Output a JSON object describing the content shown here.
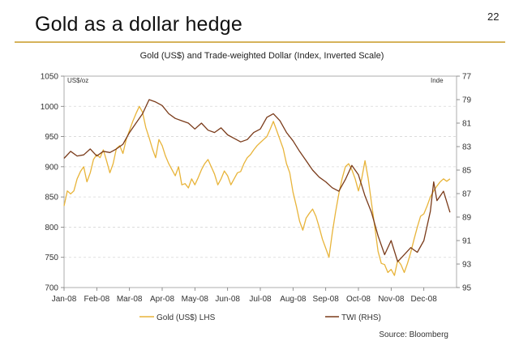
{
  "slide": {
    "title": "Gold as a dollar hedge",
    "page_number": "22"
  },
  "colors": {
    "accent_rule": "#d6b25a",
    "gold_series": "#e8b43a",
    "twi_series": "#7a3b1a",
    "gridline": "#d8d8d8"
  },
  "chart_data": {
    "type": "line",
    "title": "Gold (US$) and Trade-weighted Dollar (Index, Inverted Scale)",
    "left_axis": {
      "unit_label": "US$/oz",
      "ylim": [
        700,
        1050
      ],
      "ticks": [
        700,
        750,
        800,
        850,
        900,
        950,
        1000,
        1050
      ]
    },
    "right_axis": {
      "unit_label": "Inde",
      "ylim": [
        77,
        95
      ],
      "inverted": true,
      "ticks": [
        77,
        79,
        81,
        83,
        85,
        87,
        89,
        91,
        93,
        95
      ]
    },
    "x_ticks": [
      "Jan-08",
      "Feb-08",
      "Mar-08",
      "Apr-08",
      "May-08",
      "Jun-08",
      "Jul-08",
      "Aug-08",
      "Sep-08",
      "Oct-08",
      "Nov-08",
      "Dec-08"
    ],
    "grid": true,
    "legend_position": "bottom",
    "source": "Source: Bloomberg",
    "series": [
      {
        "name": "Gold (US$) LHS",
        "axis": "left",
        "color": "#e8b43a",
        "points": [
          [
            0.0,
            835
          ],
          [
            0.1,
            860
          ],
          [
            0.2,
            855
          ],
          [
            0.3,
            860
          ],
          [
            0.4,
            880
          ],
          [
            0.5,
            892
          ],
          [
            0.6,
            900
          ],
          [
            0.7,
            875
          ],
          [
            0.8,
            890
          ],
          [
            0.9,
            912
          ],
          [
            1.0,
            920
          ],
          [
            1.1,
            915
          ],
          [
            1.2,
            928
          ],
          [
            1.3,
            910
          ],
          [
            1.4,
            890
          ],
          [
            1.5,
            905
          ],
          [
            1.6,
            930
          ],
          [
            1.7,
            935
          ],
          [
            1.8,
            922
          ],
          [
            1.9,
            945
          ],
          [
            2.0,
            960
          ],
          [
            2.1,
            975
          ],
          [
            2.2,
            988
          ],
          [
            2.3,
            1000
          ],
          [
            2.4,
            990
          ],
          [
            2.5,
            965
          ],
          [
            2.6,
            948
          ],
          [
            2.7,
            930
          ],
          [
            2.8,
            915
          ],
          [
            2.9,
            945
          ],
          [
            3.0,
            935
          ],
          [
            3.1,
            918
          ],
          [
            3.2,
            905
          ],
          [
            3.3,
            895
          ],
          [
            3.4,
            885
          ],
          [
            3.5,
            900
          ],
          [
            3.6,
            870
          ],
          [
            3.7,
            872
          ],
          [
            3.8,
            865
          ],
          [
            3.9,
            880
          ],
          [
            4.0,
            870
          ],
          [
            4.1,
            882
          ],
          [
            4.2,
            895
          ],
          [
            4.3,
            905
          ],
          [
            4.4,
            912
          ],
          [
            4.5,
            900
          ],
          [
            4.6,
            888
          ],
          [
            4.7,
            870
          ],
          [
            4.8,
            880
          ],
          [
            4.9,
            893
          ],
          [
            5.0,
            885
          ],
          [
            5.1,
            870
          ],
          [
            5.2,
            880
          ],
          [
            5.3,
            890
          ],
          [
            5.4,
            892
          ],
          [
            5.5,
            905
          ],
          [
            5.6,
            915
          ],
          [
            5.7,
            920
          ],
          [
            5.8,
            928
          ],
          [
            5.9,
            935
          ],
          [
            6.0,
            940
          ],
          [
            6.1,
            945
          ],
          [
            6.2,
            950
          ],
          [
            6.3,
            962
          ],
          [
            6.4,
            975
          ],
          [
            6.5,
            960
          ],
          [
            6.6,
            945
          ],
          [
            6.7,
            930
          ],
          [
            6.8,
            905
          ],
          [
            6.9,
            890
          ],
          [
            7.0,
            858
          ],
          [
            7.1,
            835
          ],
          [
            7.2,
            810
          ],
          [
            7.3,
            795
          ],
          [
            7.4,
            815
          ],
          [
            7.5,
            823
          ],
          [
            7.6,
            830
          ],
          [
            7.7,
            818
          ],
          [
            7.8,
            800
          ],
          [
            7.9,
            780
          ],
          [
            8.0,
            765
          ],
          [
            8.1,
            750
          ],
          [
            8.2,
            790
          ],
          [
            8.3,
            825
          ],
          [
            8.4,
            855
          ],
          [
            8.5,
            880
          ],
          [
            8.6,
            900
          ],
          [
            8.7,
            905
          ],
          [
            8.8,
            895
          ],
          [
            8.9,
            880
          ],
          [
            9.0,
            860
          ],
          [
            9.1,
            880
          ],
          [
            9.2,
            910
          ],
          [
            9.3,
            880
          ],
          [
            9.4,
            840
          ],
          [
            9.5,
            800
          ],
          [
            9.6,
            760
          ],
          [
            9.7,
            740
          ],
          [
            9.8,
            738
          ],
          [
            9.9,
            725
          ],
          [
            10.0,
            730
          ],
          [
            10.1,
            720
          ],
          [
            10.2,
            745
          ],
          [
            10.3,
            738
          ],
          [
            10.4,
            725
          ],
          [
            10.5,
            740
          ],
          [
            10.6,
            758
          ],
          [
            10.7,
            780
          ],
          [
            10.8,
            800
          ],
          [
            10.9,
            818
          ],
          [
            11.0,
            822
          ],
          [
            11.1,
            835
          ],
          [
            11.2,
            850
          ],
          [
            11.3,
            860
          ],
          [
            11.4,
            868
          ],
          [
            11.5,
            875
          ],
          [
            11.6,
            880
          ],
          [
            11.7,
            876
          ],
          [
            11.8,
            880
          ]
        ]
      },
      {
        "name": "TWI  (RHS)",
        "axis": "right",
        "color": "#7a3b1a",
        "points": [
          [
            0.0,
            84.0
          ],
          [
            0.2,
            83.4
          ],
          [
            0.4,
            83.8
          ],
          [
            0.6,
            83.7
          ],
          [
            0.8,
            83.2
          ],
          [
            1.0,
            83.8
          ],
          [
            1.2,
            83.4
          ],
          [
            1.4,
            83.5
          ],
          [
            1.6,
            83.2
          ],
          [
            1.8,
            82.8
          ],
          [
            2.0,
            81.8
          ],
          [
            2.2,
            81.0
          ],
          [
            2.4,
            80.2
          ],
          [
            2.6,
            79.0
          ],
          [
            2.8,
            79.2
          ],
          [
            3.0,
            79.5
          ],
          [
            3.2,
            80.2
          ],
          [
            3.4,
            80.6
          ],
          [
            3.6,
            80.8
          ],
          [
            3.8,
            81.0
          ],
          [
            4.0,
            81.5
          ],
          [
            4.2,
            81.0
          ],
          [
            4.4,
            81.6
          ],
          [
            4.6,
            81.8
          ],
          [
            4.8,
            81.4
          ],
          [
            5.0,
            82.0
          ],
          [
            5.2,
            82.3
          ],
          [
            5.4,
            82.6
          ],
          [
            5.6,
            82.4
          ],
          [
            5.8,
            81.8
          ],
          [
            6.0,
            81.5
          ],
          [
            6.2,
            80.5
          ],
          [
            6.4,
            80.2
          ],
          [
            6.6,
            80.8
          ],
          [
            6.8,
            81.8
          ],
          [
            7.0,
            82.5
          ],
          [
            7.2,
            83.4
          ],
          [
            7.4,
            84.2
          ],
          [
            7.6,
            85.0
          ],
          [
            7.8,
            85.6
          ],
          [
            8.0,
            86.0
          ],
          [
            8.2,
            86.5
          ],
          [
            8.4,
            86.8
          ],
          [
            8.6,
            85.8
          ],
          [
            8.8,
            84.6
          ],
          [
            9.0,
            85.4
          ],
          [
            9.2,
            87.2
          ],
          [
            9.4,
            88.6
          ],
          [
            9.6,
            90.6
          ],
          [
            9.8,
            92.2
          ],
          [
            10.0,
            91.0
          ],
          [
            10.2,
            92.8
          ],
          [
            10.4,
            92.2
          ],
          [
            10.6,
            91.6
          ],
          [
            10.8,
            92.0
          ],
          [
            11.0,
            91.0
          ],
          [
            11.2,
            88.5
          ],
          [
            11.3,
            86.0
          ],
          [
            11.4,
            87.6
          ],
          [
            11.6,
            86.8
          ],
          [
            11.8,
            88.6
          ]
        ]
      }
    ]
  }
}
